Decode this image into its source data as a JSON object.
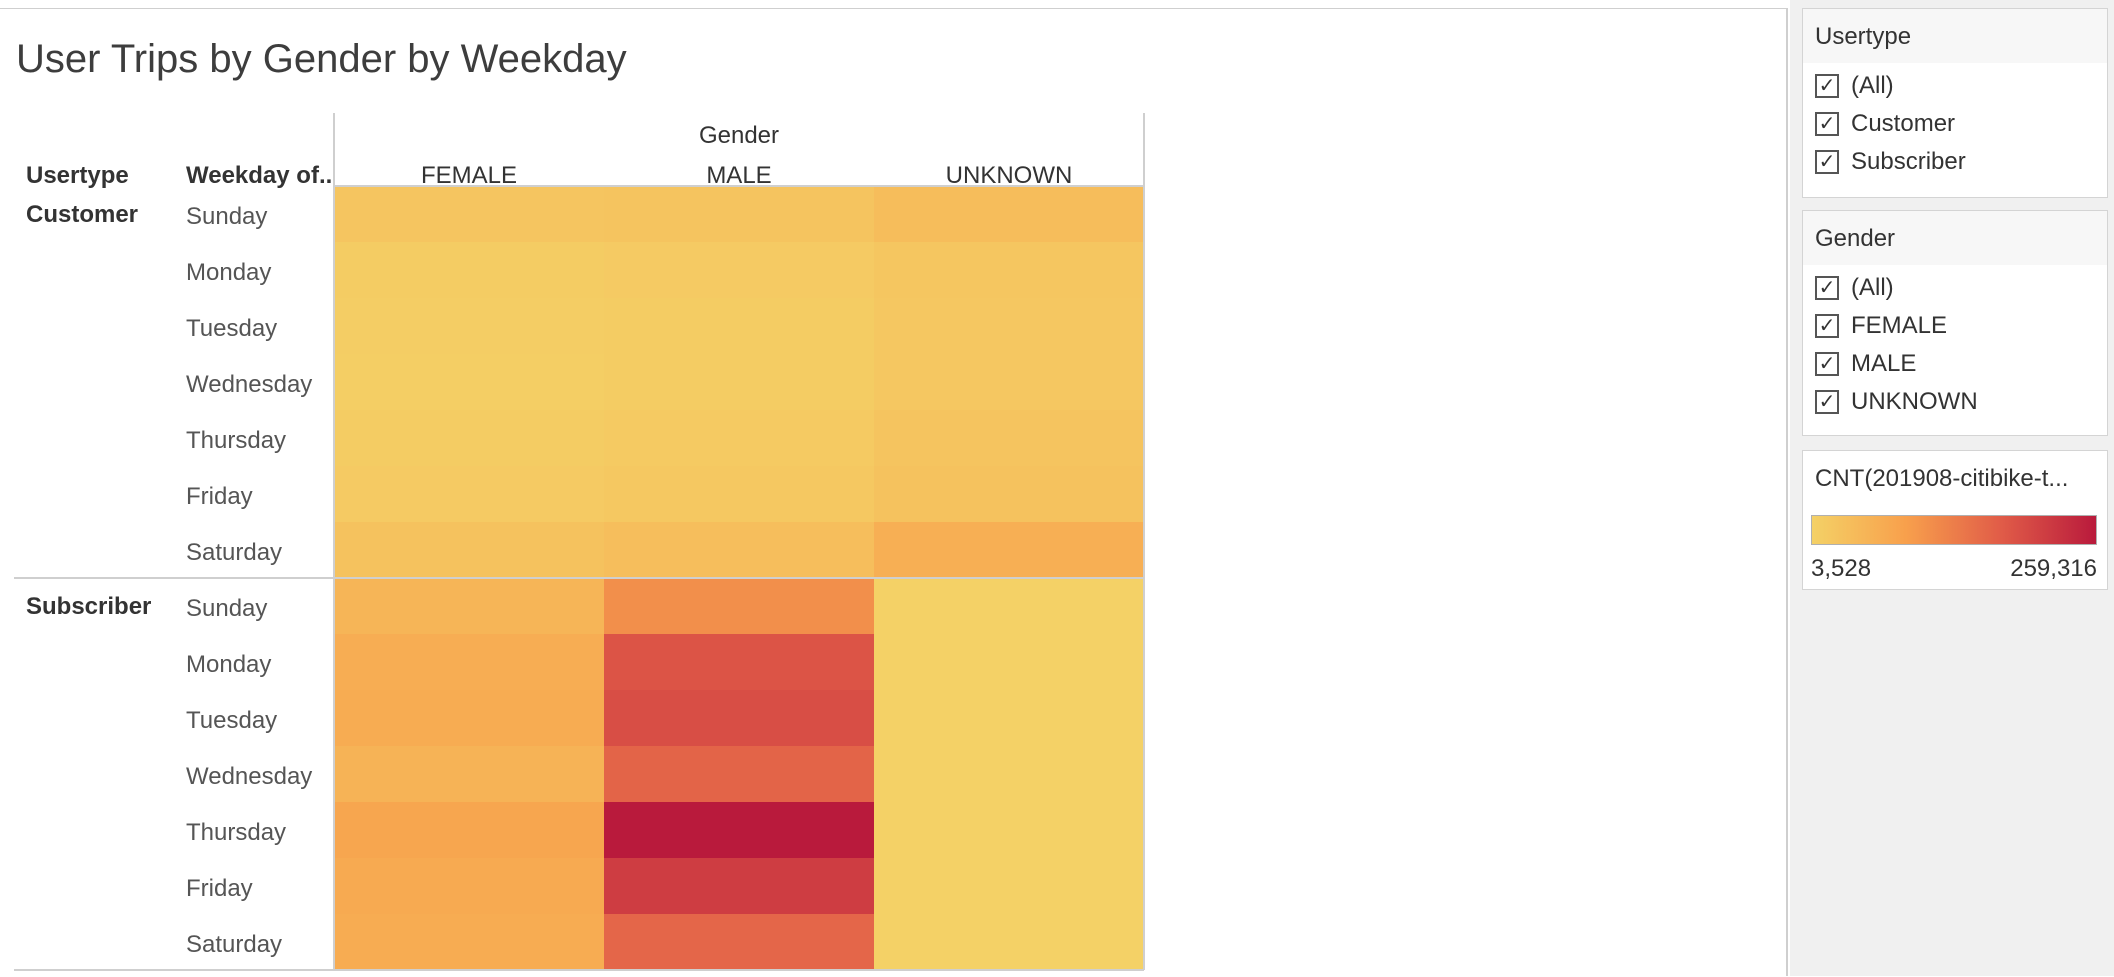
{
  "title": "User Trips by Gender by Weekday",
  "chart_data": {
    "type": "heatmap",
    "title": "User Trips by Gender by Weekday",
    "column_group_label": "Gender",
    "row_header_labels": [
      "Usertype",
      "Weekday of.."
    ],
    "columns": [
      "FEMALE",
      "MALE",
      "UNKNOWN"
    ],
    "row_groups": [
      {
        "name": "Customer",
        "rows": [
          {
            "label": "Sunday",
            "values": [
              24000,
              27000,
              38000
            ]
          },
          {
            "label": "Monday",
            "values": [
              12000,
              15000,
              22000
            ]
          },
          {
            "label": "Tuesday",
            "values": [
              10000,
              13000,
              21000
            ]
          },
          {
            "label": "Wednesday",
            "values": [
              9000,
              12000,
              21000
            ]
          },
          {
            "label": "Thursday",
            "values": [
              12000,
              16000,
              26000
            ]
          },
          {
            "label": "Friday",
            "values": [
              15000,
              20000,
              29000
            ]
          },
          {
            "label": "Saturday",
            "values": [
              30000,
              36000,
              62000
            ]
          }
        ]
      },
      {
        "name": "Subscriber",
        "rows": [
          {
            "label": "Sunday",
            "values": [
              52000,
              110000,
              3600
            ]
          },
          {
            "label": "Monday",
            "values": [
              66000,
              185000,
              3528
            ]
          },
          {
            "label": "Tuesday",
            "values": [
              68000,
              193000,
              3528
            ]
          },
          {
            "label": "Wednesday",
            "values": [
              55000,
              165000,
              3528
            ]
          },
          {
            "label": "Thursday",
            "values": [
              78000,
              259316,
              3528
            ]
          },
          {
            "label": "Friday",
            "values": [
              72000,
              215000,
              3528
            ]
          },
          {
            "label": "Saturday",
            "values": [
              68000,
              162000,
              3600
            ]
          }
        ]
      }
    ],
    "color_scale": {
      "min": 3528,
      "max": 259316,
      "min_label": "3,528",
      "max_label": "259,316",
      "stops": [
        "#f4d166",
        "#f8a04c",
        "#e15d48",
        "#b91a3c"
      ]
    }
  },
  "filters": [
    {
      "title": "Usertype",
      "items": [
        "(All)",
        "Customer",
        "Subscriber"
      ],
      "checked": true
    },
    {
      "title": "Gender",
      "items": [
        "(All)",
        "FEMALE",
        "MALE",
        "UNKNOWN"
      ],
      "checked": true
    }
  ],
  "legend": {
    "title": "CNT(201908-citibike-t...",
    "min_label": "3,528",
    "max_label": "259,316"
  },
  "checkmark": "✓"
}
